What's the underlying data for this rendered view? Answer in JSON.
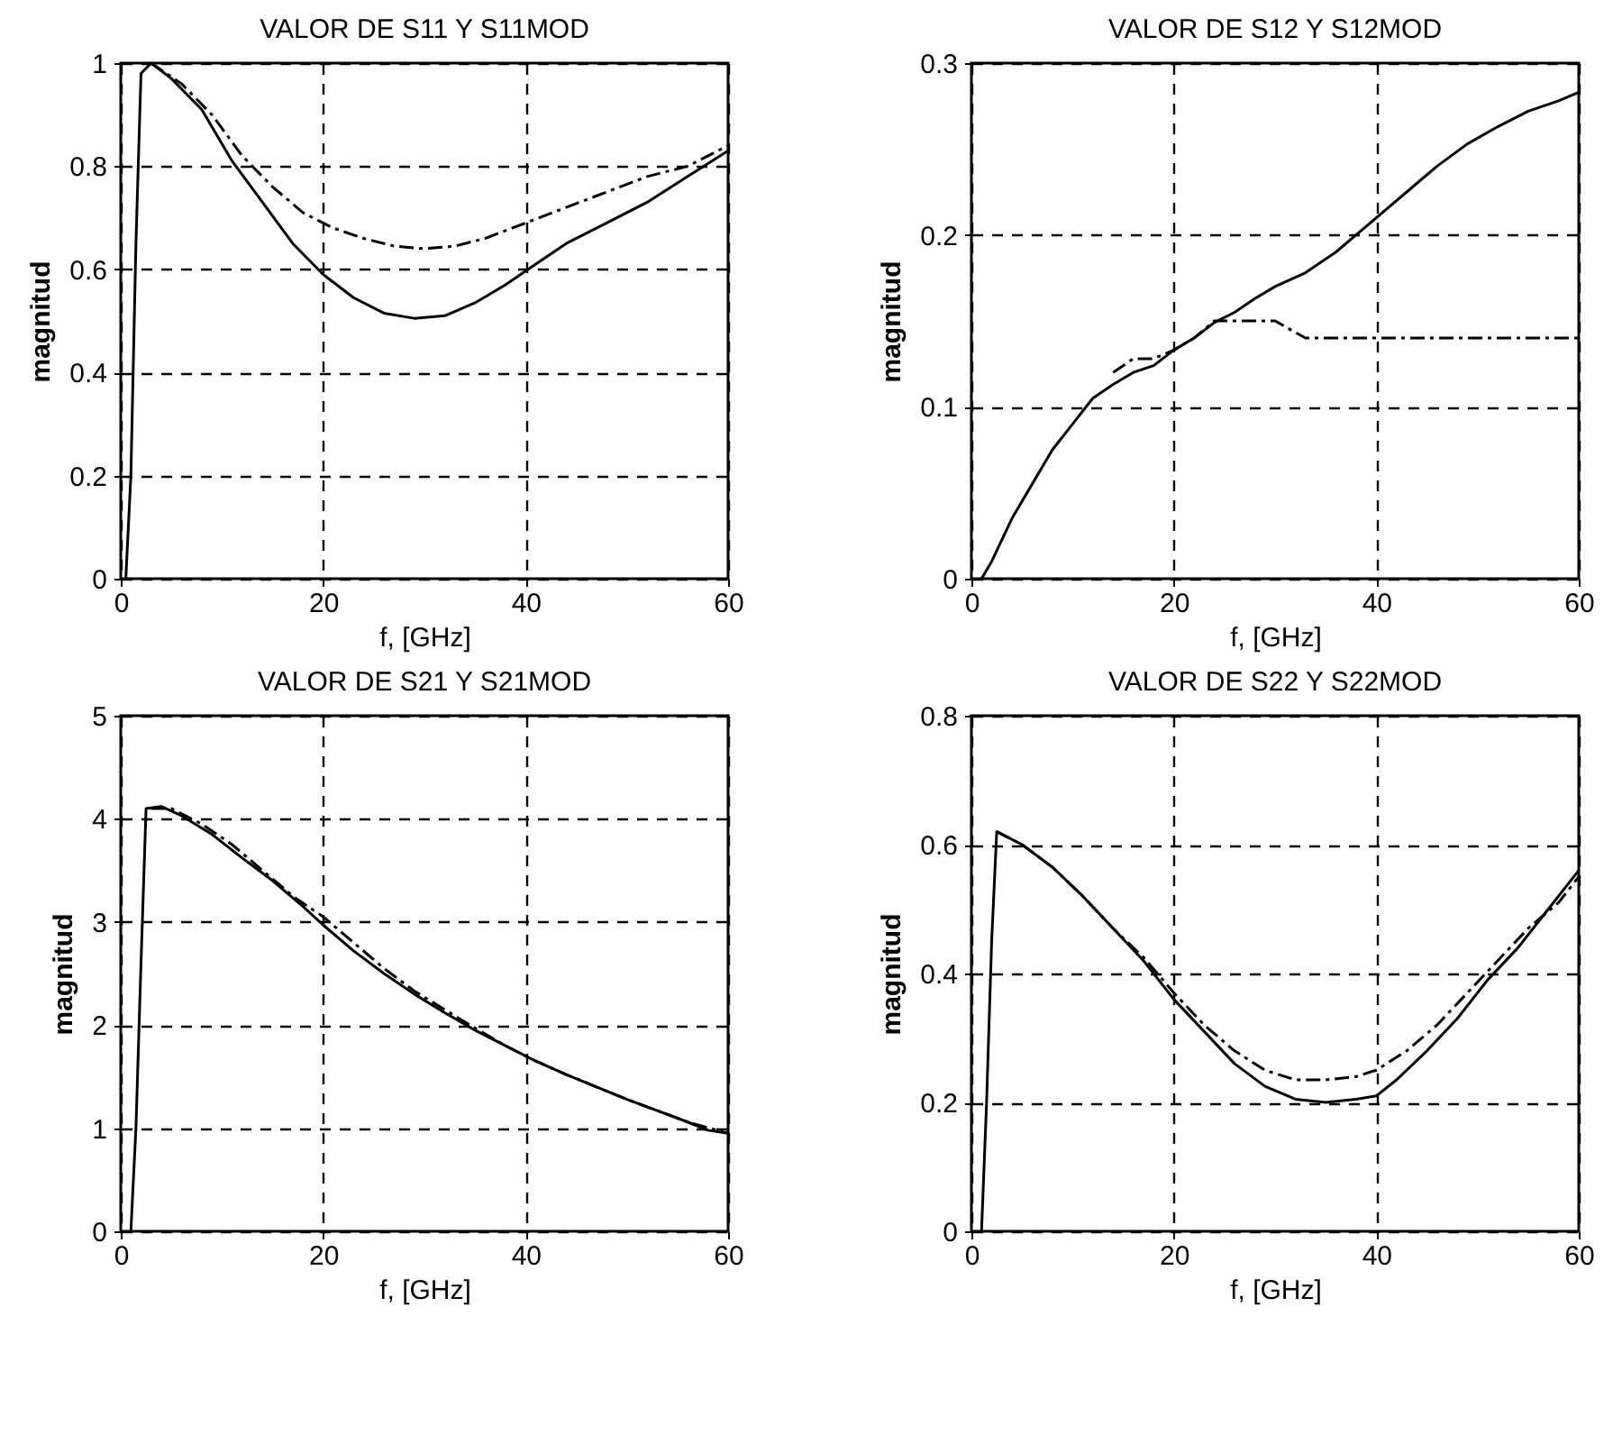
{
  "chart_data": [
    {
      "type": "line",
      "title": "VALOR DE S11 Y S11MOD",
      "xlabel": "f, [GHz]",
      "ylabel": "magnitud",
      "xlim": [
        0,
        60
      ],
      "xticks": [
        0,
        20,
        40,
        60
      ],
      "ylim": [
        0,
        1
      ],
      "yticks": [
        0,
        0.2,
        0.4,
        0.6,
        0.8,
        1
      ],
      "grid": true,
      "series": [
        {
          "color": "#000000",
          "line_style": "solid",
          "x": [
            0.5,
            1,
            1.5,
            2,
            3,
            5,
            8,
            11,
            14,
            17,
            20,
            23,
            26,
            29,
            32,
            35,
            38,
            41,
            44,
            48,
            52,
            56,
            60
          ],
          "values": [
            0,
            0.2,
            0.65,
            0.98,
            1.0,
            0.97,
            0.91,
            0.81,
            0.73,
            0.65,
            0.59,
            0.545,
            0.515,
            0.505,
            0.51,
            0.535,
            0.57,
            0.61,
            0.65,
            0.69,
            0.73,
            0.78,
            0.83
          ]
        },
        {
          "color": "#000000",
          "line_style": "dashed",
          "x": [
            3,
            6,
            9,
            12,
            15,
            18,
            21,
            24,
            27,
            30,
            33,
            36,
            40,
            44,
            48,
            52,
            56,
            60
          ],
          "values": [
            1.0,
            0.96,
            0.9,
            0.82,
            0.76,
            0.71,
            0.68,
            0.66,
            0.645,
            0.64,
            0.645,
            0.66,
            0.69,
            0.72,
            0.75,
            0.78,
            0.8,
            0.84
          ]
        }
      ]
    },
    {
      "type": "line",
      "title": "VALOR DE S12 Y S12MOD",
      "xlabel": "f, [GHz]",
      "ylabel": "magnitud",
      "xlim": [
        0,
        60
      ],
      "xticks": [
        0,
        20,
        40,
        60
      ],
      "ylim": [
        0,
        0.3
      ],
      "yticks": [
        0,
        0.1,
        0.2,
        0.3
      ],
      "grid": true,
      "series": [
        {
          "color": "#000000",
          "line_style": "solid",
          "x": [
            1,
            2,
            4,
            6,
            8,
            10,
            12,
            14,
            16,
            18,
            20,
            22,
            24,
            26,
            28,
            30,
            33,
            36,
            38,
            40,
            43,
            46,
            49,
            52,
            55,
            58,
            60
          ],
          "values": [
            0,
            0.01,
            0.035,
            0.055,
            0.075,
            0.09,
            0.105,
            0.113,
            0.12,
            0.124,
            0.133,
            0.14,
            0.149,
            0.155,
            0.163,
            0.17,
            0.178,
            0.19,
            0.2,
            0.21,
            0.225,
            0.24,
            0.253,
            0.263,
            0.272,
            0.278,
            0.283
          ]
        },
        {
          "color": "#000000",
          "line_style": "dashed",
          "x": [
            14,
            16,
            18,
            20,
            22,
            24,
            26,
            30,
            33,
            40,
            50,
            60
          ],
          "values": [
            0.12,
            0.128,
            0.128,
            0.133,
            0.14,
            0.15,
            0.15,
            0.15,
            0.14,
            0.14,
            0.14,
            0.14
          ]
        }
      ]
    },
    {
      "type": "line",
      "title": "VALOR DE S21 Y S21MOD",
      "xlabel": "f, [GHz]",
      "ylabel": "magnitud",
      "xlim": [
        0,
        60
      ],
      "xticks": [
        0,
        20,
        40,
        60
      ],
      "ylim": [
        0,
        5
      ],
      "yticks": [
        0,
        1,
        2,
        3,
        4,
        5
      ],
      "grid": true,
      "series": [
        {
          "color": "#000000",
          "line_style": "solid",
          "x": [
            1,
            1.5,
            2,
            2.5,
            4,
            6,
            9,
            12,
            15,
            18,
            20,
            23,
            26,
            29,
            32,
            35,
            38,
            41,
            44,
            47,
            50,
            53,
            56,
            58,
            60
          ],
          "values": [
            0,
            1,
            2.6,
            4.1,
            4.12,
            4.03,
            3.85,
            3.62,
            3.4,
            3.15,
            2.97,
            2.72,
            2.5,
            2.3,
            2.12,
            1.95,
            1.8,
            1.65,
            1.52,
            1.4,
            1.28,
            1.17,
            1.06,
            0.98,
            0.95
          ]
        },
        {
          "color": "#000000",
          "line_style": "dashed",
          "x": [
            3,
            5,
            8,
            11,
            14,
            17,
            20,
            23,
            26,
            29,
            32,
            35,
            38,
            41,
            44,
            47,
            50,
            53,
            56,
            60
          ],
          "values": [
            4.1,
            4.1,
            3.95,
            3.75,
            3.5,
            3.25,
            3.05,
            2.8,
            2.55,
            2.33,
            2.15,
            1.97,
            1.8,
            1.65,
            1.52,
            1.4,
            1.28,
            1.17,
            1.06,
            0.95
          ]
        }
      ]
    },
    {
      "type": "line",
      "title": "VALOR DE S22 Y S22MOD",
      "xlabel": "f, [GHz]",
      "ylabel": "magnitud",
      "xlim": [
        0,
        60
      ],
      "xticks": [
        0,
        20,
        40,
        60
      ],
      "ylim": [
        0,
        0.8
      ],
      "yticks": [
        0,
        0.2,
        0.4,
        0.6,
        0.8
      ],
      "grid": true,
      "series": [
        {
          "color": "#000000",
          "line_style": "solid",
          "x": [
            1,
            1.5,
            2,
            2.5,
            5,
            8,
            11,
            14,
            17,
            20,
            23,
            26,
            29,
            32,
            35,
            38,
            40,
            42,
            45,
            48,
            51,
            54,
            57,
            60
          ],
          "values": [
            0,
            0.2,
            0.45,
            0.62,
            0.6,
            0.565,
            0.52,
            0.47,
            0.42,
            0.36,
            0.31,
            0.26,
            0.225,
            0.205,
            0.2,
            0.205,
            0.21,
            0.235,
            0.28,
            0.33,
            0.39,
            0.44,
            0.5,
            0.56
          ]
        },
        {
          "color": "#000000",
          "line_style": "dashed",
          "x": [
            2.5,
            5,
            8,
            11,
            14,
            17,
            20,
            23,
            26,
            29,
            32,
            35,
            38,
            40,
            43,
            46,
            49,
            52,
            55,
            58,
            60
          ],
          "values": [
            0.62,
            0.6,
            0.565,
            0.52,
            0.47,
            0.425,
            0.37,
            0.32,
            0.28,
            0.25,
            0.235,
            0.235,
            0.24,
            0.25,
            0.28,
            0.32,
            0.37,
            0.42,
            0.47,
            0.51,
            0.55
          ]
        }
      ]
    }
  ]
}
